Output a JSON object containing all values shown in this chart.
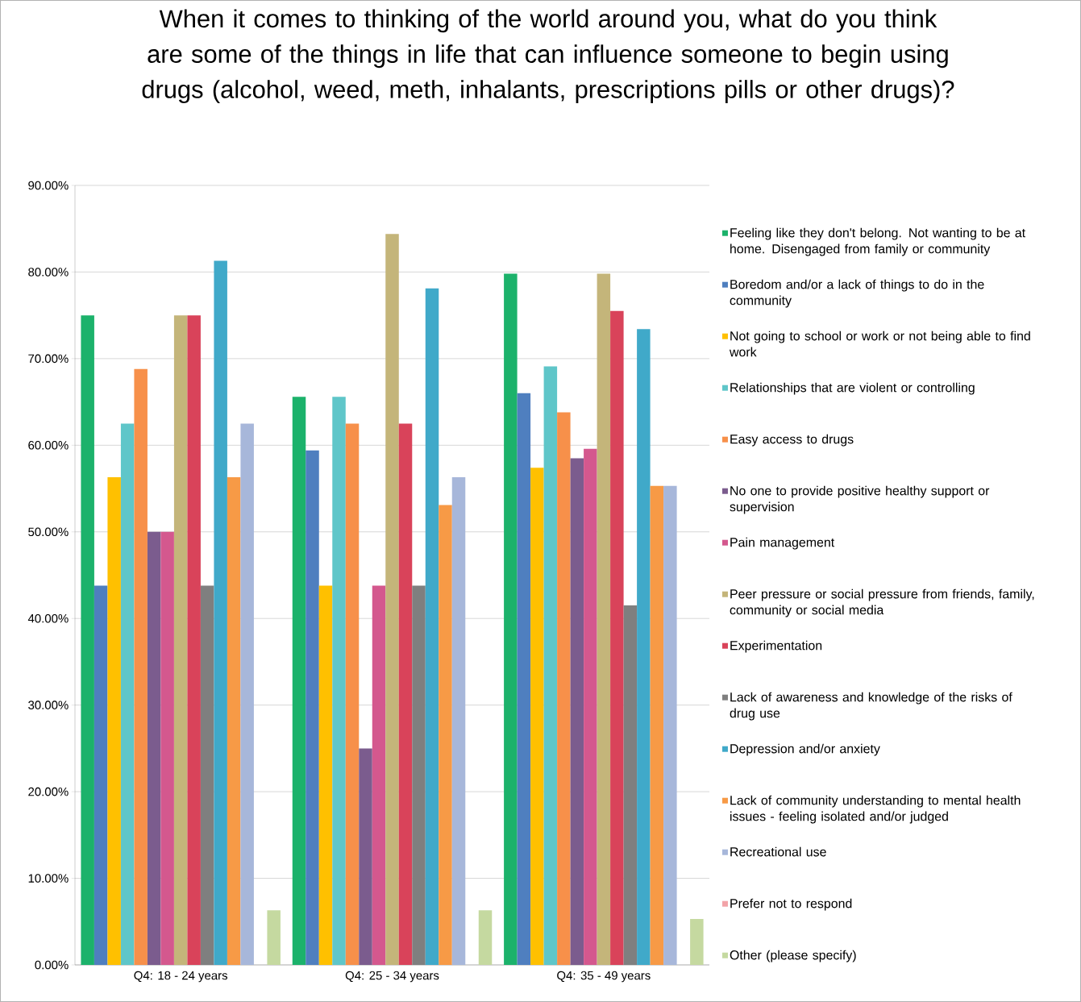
{
  "chart_data": {
    "type": "bar",
    "title": "When it comes to thinking of the world around you, what do you think are some of the things in life that can influence someone to begin using drugs (alcohol, weed,  meth, inhalants, prescriptions pills or other drugs)?",
    "categories": [
      "Q4: 18 - 24 years",
      "Q4: 25 - 34 years",
      "Q4: 35 - 49 years"
    ],
    "series": [
      {
        "name": "Feeling like they don't belong.  Not wanting to be at home. Disengaged from family or community",
        "color": "#1cb26b",
        "values": [
          75.0,
          65.6,
          79.8
        ]
      },
      {
        "name": "Boredom and/or a lack of things to do in the community",
        "color": "#4f7fbf",
        "values": [
          43.8,
          59.4,
          66.0
        ]
      },
      {
        "name": "Not going to school or work or not being able to find work",
        "color": "#ffc000",
        "values": [
          56.3,
          43.8,
          57.4
        ]
      },
      {
        "name": "Relationships that are violent or controlling",
        "color": "#5fc6c9",
        "values": [
          62.5,
          65.6,
          69.1
        ]
      },
      {
        "name": "Easy access to drugs",
        "color": "#f7904a",
        "values": [
          68.8,
          62.5,
          63.8
        ]
      },
      {
        "name": "No one to provide positive healthy support or supervision",
        "color": "#7b5c8e",
        "values": [
          50.0,
          25.0,
          58.5
        ]
      },
      {
        "name": "Pain management",
        "color": "#d4588e",
        "values": [
          50.0,
          43.8,
          59.6
        ]
      },
      {
        "name": "Peer pressure or social pressure from friends, family, community or social media",
        "color": "#c4b57a",
        "values": [
          75.0,
          84.4,
          79.8
        ]
      },
      {
        "name": "Experimentation",
        "color": "#d9435a",
        "values": [
          75.0,
          62.5,
          75.5
        ]
      },
      {
        "name": "Lack of awareness and knowledge of the risks of drug use",
        "color": "#7f7f7f",
        "values": [
          43.8,
          43.8,
          41.5
        ]
      },
      {
        "name": "Depression and/or anxiety",
        "color": "#40a9c9",
        "values": [
          81.3,
          78.1,
          73.4
        ]
      },
      {
        "name": "Lack of community understanding to mental health issues - feeling isolated and/or judged",
        "color": "#f79a46",
        "values": [
          56.3,
          53.1,
          55.3
        ]
      },
      {
        "name": "Recreational use",
        "color": "#a7b7da",
        "values": [
          62.5,
          56.3,
          55.3
        ]
      },
      {
        "name": "Prefer not to respond",
        "color": "#f2a3a8",
        "values": [
          0,
          0,
          0
        ]
      },
      {
        "name": "Other (please specify)",
        "color": "#c5d9a0",
        "values": [
          6.3,
          6.3,
          5.3
        ]
      }
    ],
    "ylim": [
      0,
      90
    ],
    "yticks": [
      {
        "value": 0,
        "label": "0.00%"
      },
      {
        "value": 10,
        "label": "10.00%"
      },
      {
        "value": 20,
        "label": "20.00%"
      },
      {
        "value": 30,
        "label": "30.00%"
      },
      {
        "value": 40,
        "label": "40.00%"
      },
      {
        "value": 50,
        "label": "50.00%"
      },
      {
        "value": 60,
        "label": "60.00%"
      },
      {
        "value": 70,
        "label": "70.00%"
      },
      {
        "value": 80,
        "label": "80.00%"
      },
      {
        "value": 90,
        "label": "90.00%"
      }
    ],
    "grid": "y",
    "legend": "right"
  }
}
